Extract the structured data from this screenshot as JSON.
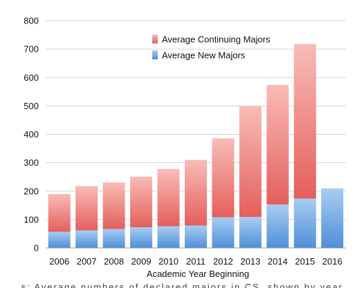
{
  "chart_data": {
    "type": "bar",
    "stacked": true,
    "categories": [
      "2006",
      "2007",
      "2008",
      "2009",
      "2010",
      "2011",
      "2012",
      "2013",
      "2014",
      "2015",
      "2016"
    ],
    "series": [
      {
        "name": "Average New Majors",
        "color": "#5f9ee0",
        "values": [
          57,
          62,
          67,
          73,
          76,
          79,
          108,
          109,
          153,
          174,
          210
        ]
      },
      {
        "name": "Average Continuing Majors",
        "color": "#ef7c78",
        "values": [
          133,
          156,
          164,
          178,
          202,
          231,
          278,
          390,
          421,
          544,
          0
        ]
      }
    ],
    "title": "",
    "xlabel": "Academic Year Beginning",
    "ylabel": "",
    "ylim": [
      0,
      800
    ],
    "yticks": [
      0,
      100,
      200,
      300,
      400,
      500,
      600,
      700,
      800
    ],
    "grid": true,
    "legend": "top-center, inside plot",
    "legend_order": [
      "Average Continuing Majors",
      "Average New Majors"
    ]
  },
  "caption": "...s: Average numbers of declared majors in CS, shown by year"
}
